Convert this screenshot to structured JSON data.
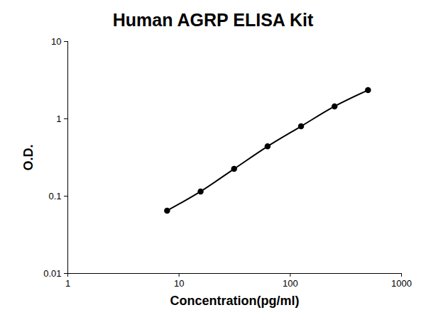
{
  "chart_data": {
    "type": "line",
    "title": "Human AGRP ELISA Kit",
    "x_label": "Concentration(pg/ml)",
    "y_label": "O.D.",
    "x": [
      7.8125,
      15.625,
      31.25,
      62.5,
      125,
      250,
      500
    ],
    "values": [
      0.065,
      0.115,
      0.225,
      0.44,
      0.8,
      1.45,
      2.35
    ],
    "color": "#000000",
    "marker": "circle",
    "line_style": "solid",
    "log": true,
    "grid": false,
    "xlim": [
      1,
      1000
    ],
    "xticks": [
      1,
      10,
      100,
      1000
    ],
    "ylim": [
      0.01,
      10
    ],
    "yticks": [
      0.01,
      0.1,
      1,
      10
    ]
  }
}
